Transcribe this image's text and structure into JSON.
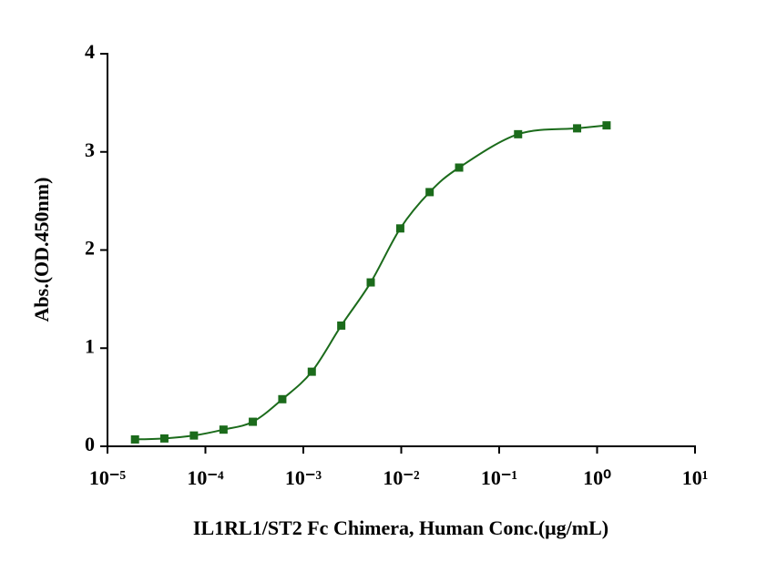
{
  "chart_data": {
    "type": "line",
    "xlabel": "IL1RL1/ST2 Fc Chimera, Human Conc.(μg/mL)",
    "ylabel": "Abs.(OD.450nm)",
    "xscale": "log",
    "x": [
      1.91e-05,
      3.81e-05,
      7.63e-05,
      0.000153,
      0.000305,
      0.00061,
      0.00122,
      0.00244,
      0.00488,
      0.00977,
      0.0195,
      0.039,
      0.156,
      0.625,
      1.25
    ],
    "series": [
      {
        "name": "Abs",
        "color": "#1b6b1b",
        "values": [
          0.07,
          0.08,
          0.11,
          0.17,
          0.25,
          0.48,
          0.76,
          1.23,
          1.67,
          2.22,
          2.59,
          2.84,
          3.18,
          3.24,
          3.27
        ]
      }
    ],
    "xlim": [
      1e-05,
      10
    ],
    "xticks": [
      {
        "value": 1e-05,
        "label": "10⁻⁵"
      },
      {
        "value": 0.0001,
        "label": "10⁻⁴"
      },
      {
        "value": 0.001,
        "label": "10⁻³"
      },
      {
        "value": 0.01,
        "label": "10⁻²"
      },
      {
        "value": 0.1,
        "label": "10⁻¹"
      },
      {
        "value": 1,
        "label": "10⁰"
      },
      {
        "value": 10,
        "label": "10¹"
      }
    ],
    "ylim": [
      0,
      4
    ],
    "yticks": [
      0,
      1,
      2,
      3,
      4
    ],
    "grid": false
  }
}
